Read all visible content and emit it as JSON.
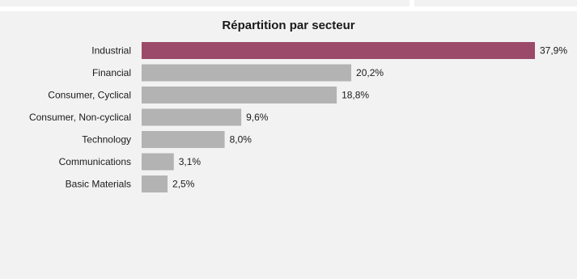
{
  "chart_data": {
    "type": "bar",
    "orientation": "horizontal",
    "title": "Répartition par secteur",
    "categories": [
      "Industrial",
      "Financial",
      "Consumer, Cyclical",
      "Consumer, Non-cyclical",
      "Technology",
      "Communications",
      "Basic Materials"
    ],
    "values": [
      37.9,
      20.2,
      18.8,
      9.6,
      8.0,
      3.1,
      2.5
    ],
    "value_labels": [
      "37,9%",
      "20,2%",
      "18,8%",
      "9,6%",
      "8,0%",
      "3,1%",
      "2,5%"
    ],
    "unit": "%",
    "xlim": [
      0,
      37.9
    ],
    "grid": false,
    "legend": "none",
    "highlight_index": 0,
    "colors": {
      "highlight": "#9b4a6a",
      "default": "#b3b3b3",
      "background": "#f2f2f2"
    }
  }
}
